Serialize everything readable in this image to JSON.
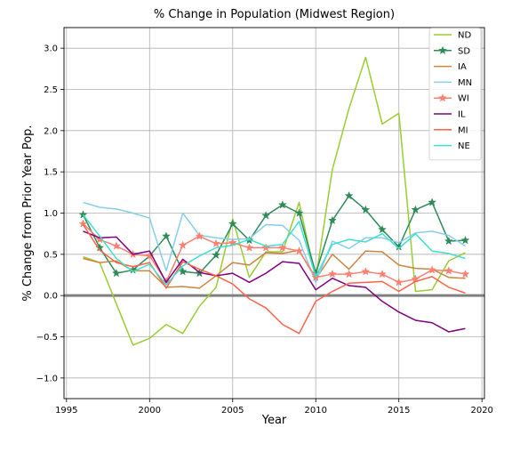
{
  "chart_data": {
    "type": "line",
    "title": "% Change in Population (Midwest Region)",
    "xlabel": "Year",
    "ylabel": "% Change from Prior Year Pop.",
    "xlim": [
      1994.85,
      2020.15
    ],
    "ylim": [
      -1.25,
      3.25
    ],
    "xticks": [
      1995,
      2000,
      2005,
      2010,
      2015,
      2020
    ],
    "xtick_labels": [
      "1995",
      "2000",
      "2005",
      "2010",
      "2015",
      "2020"
    ],
    "yticks": [
      -1.0,
      -0.5,
      0.0,
      0.5,
      1.0,
      1.5,
      2.0,
      2.5,
      3.0
    ],
    "ytick_labels": [
      "−1.0",
      "−0.5",
      "0.0",
      "0.5",
      "1.0",
      "1.5",
      "2.0",
      "2.5",
      "3.0"
    ],
    "grid": true,
    "legend_position": "top-right",
    "reference_line": {
      "y": 0.0,
      "color": "#808080"
    },
    "x": [
      1996,
      1997,
      1998,
      1999,
      2000,
      2001,
      2002,
      2003,
      2004,
      2005,
      2006,
      2007,
      2008,
      2009,
      2010,
      2011,
      2012,
      2013,
      2014,
      2015,
      2016,
      2017,
      2018,
      2019
    ],
    "series": [
      {
        "name": "ND",
        "color": "#9acd32",
        "marker": "none",
        "values": [
          0.47,
          0.4,
          -0.1,
          -0.6,
          -0.52,
          -0.35,
          -0.46,
          -0.13,
          0.1,
          0.93,
          0.22,
          0.53,
          0.53,
          1.13,
          0.2,
          1.53,
          2.27,
          2.89,
          2.08,
          2.21,
          0.05,
          0.07,
          0.42,
          0.52
        ]
      },
      {
        "name": "SD",
        "color": "#2e8b57",
        "marker": "star",
        "values": [
          0.98,
          0.58,
          0.27,
          0.31,
          0.48,
          0.72,
          0.29,
          0.27,
          0.49,
          0.87,
          0.67,
          0.97,
          1.1,
          1.0,
          0.27,
          0.91,
          1.21,
          1.04,
          0.8,
          0.59,
          1.04,
          1.13,
          0.66,
          0.67
        ]
      },
      {
        "name": "IA",
        "color": "#cd853f",
        "marker": "none",
        "values": [
          0.45,
          0.4,
          0.42,
          0.3,
          0.3,
          0.1,
          0.11,
          0.09,
          0.24,
          0.4,
          0.37,
          0.52,
          0.51,
          0.55,
          0.2,
          0.5,
          0.32,
          0.54,
          0.53,
          0.37,
          0.33,
          0.32,
          0.22,
          0.21
        ]
      },
      {
        "name": "MN",
        "color": "#87ceeb",
        "marker": "none",
        "values": [
          1.13,
          1.07,
          1.05,
          1.0,
          0.94,
          0.3,
          1.0,
          0.73,
          0.7,
          0.68,
          0.69,
          0.86,
          0.85,
          0.67,
          0.16,
          0.66,
          0.57,
          0.7,
          0.7,
          0.64,
          0.76,
          0.78,
          0.73,
          0.6
        ]
      },
      {
        "name": "WI",
        "color": "#fa8072",
        "marker": "star",
        "values": [
          0.87,
          0.68,
          0.6,
          0.5,
          0.48,
          0.17,
          0.61,
          0.72,
          0.63,
          0.64,
          0.58,
          0.58,
          0.58,
          0.54,
          0.22,
          0.26,
          0.26,
          0.29,
          0.26,
          0.16,
          0.2,
          0.31,
          0.3,
          0.26
        ]
      },
      {
        "name": "IL",
        "color": "#800080",
        "marker": "none",
        "values": [
          0.78,
          0.7,
          0.71,
          0.5,
          0.54,
          0.16,
          0.44,
          0.28,
          0.24,
          0.27,
          0.16,
          0.27,
          0.41,
          0.39,
          0.07,
          0.21,
          0.12,
          0.1,
          -0.07,
          -0.2,
          -0.3,
          -0.33,
          -0.44,
          -0.4
        ]
      },
      {
        "name": "MI",
        "color": "#ff6347",
        "marker": "none",
        "values": [
          0.86,
          0.55,
          0.4,
          0.35,
          0.4,
          0.09,
          0.41,
          0.32,
          0.24,
          0.14,
          -0.04,
          -0.15,
          -0.35,
          -0.46,
          -0.07,
          0.05,
          0.15,
          0.16,
          0.17,
          0.05,
          0.17,
          0.23,
          0.1,
          0.03
        ]
      },
      {
        "name": "NE",
        "color": "#40e0d0",
        "marker": "none",
        "values": [
          0.98,
          0.72,
          0.45,
          0.29,
          0.38,
          0.13,
          0.36,
          0.48,
          0.58,
          0.61,
          0.68,
          0.6,
          0.62,
          0.9,
          0.23,
          0.62,
          0.68,
          0.65,
          0.75,
          0.57,
          0.75,
          0.54,
          0.51,
          0.45
        ]
      }
    ]
  }
}
